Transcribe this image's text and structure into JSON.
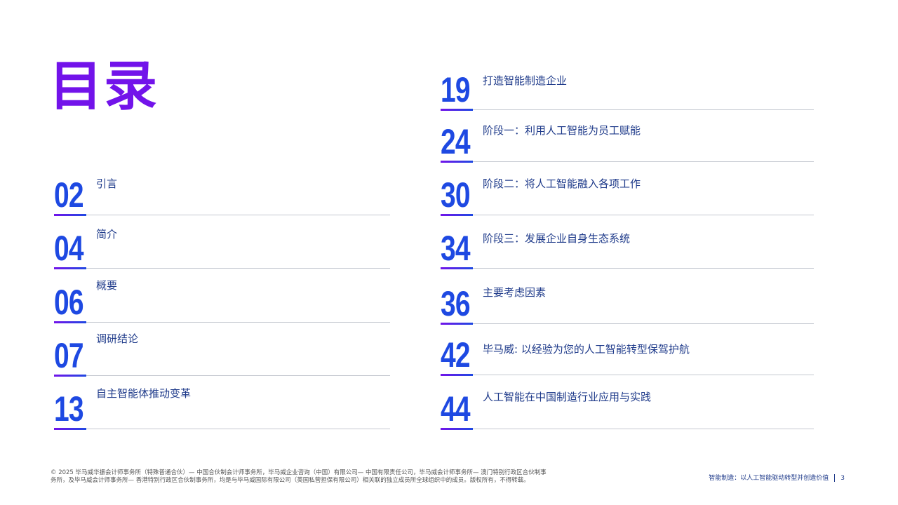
{
  "title": "目录",
  "left_items": [
    {
      "page": "02",
      "label": "引言"
    },
    {
      "page": "04",
      "label": "简介"
    },
    {
      "page": "06",
      "label": "概要"
    },
    {
      "page": "07",
      "label": "调研结论"
    },
    {
      "page": "13",
      "label": "自主智能体推动变革"
    }
  ],
  "right_items": [
    {
      "page": "19",
      "label": "打造智能制造企业"
    },
    {
      "page": "24",
      "label": "阶段一：利用人工智能为员工赋能"
    },
    {
      "page": "30",
      "label": "阶段二：将人工智能融入各项工作"
    },
    {
      "page": "34",
      "label": "阶段三：发展企业自身生态系统"
    },
    {
      "page": "36",
      "label": "主要考虑因素"
    },
    {
      "page": "42",
      "label": "毕马威: 以经验为您的人工智能转型保驾护航"
    },
    {
      "page": "44",
      "label": "人工智能在中国制造行业应用与实践"
    }
  ],
  "footer": {
    "copyright": "© 2025 毕马威华振会计师事务所（特殊普通合伙）— 中国合伙制会计师事务所，毕马威企业咨询（中国）有限公司— 中国有限责任公司，毕马威会计师事务所— 澳门特别行政区合伙制事务所，及毕马威会计师事务所— 香港特别行政区合伙制事务所，均是与毕马威国际有限公司（英国私营担保有限公司）相关联的独立成员所全球组织中的成员。版权所有，不得转载。",
    "report_title": "智能制造：以人工智能驱动转型并创造价值",
    "page_number": "3"
  },
  "colors": {
    "title": "#7213ea",
    "number": "#1e49e2",
    "label": "#1e3a8a"
  }
}
